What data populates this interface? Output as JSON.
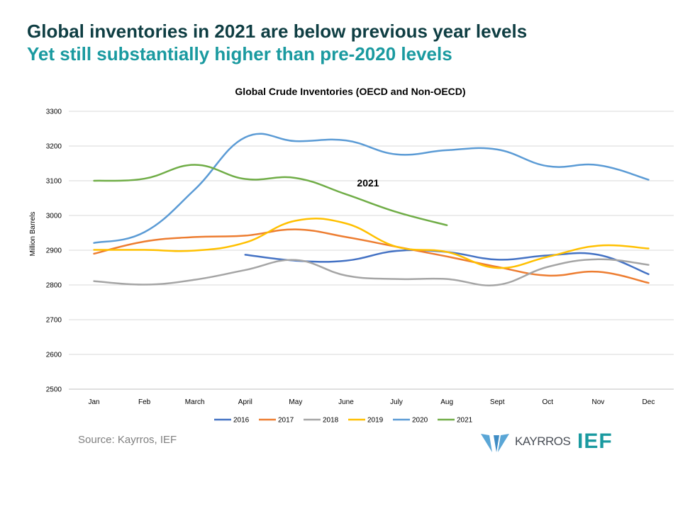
{
  "header": {
    "title": "Global inventories in 2021 are below previous year levels",
    "subtitle": "Yet still substantially higher than pre-2020 levels"
  },
  "chart_data": {
    "type": "line",
    "title": "Global Crude Inventories (OECD and Non-OECD)",
    "xlabel": "",
    "ylabel": "Million Barrels",
    "categories": [
      "Jan",
      "Feb",
      "March",
      "April",
      "May",
      "June",
      "July",
      "Aug",
      "Sept",
      "Oct",
      "Nov",
      "Dec"
    ],
    "ylim": [
      2500,
      3300
    ],
    "yticks": [
      2500,
      2600,
      2700,
      2800,
      2900,
      3000,
      3100,
      3200,
      3300
    ],
    "grid": true,
    "legend_position": "bottom",
    "annotation": "2021",
    "series": [
      {
        "name": "2016",
        "color": "#4472c4",
        "values": [
          null,
          null,
          null,
          2887,
          2870,
          2870,
          2898,
          2895,
          2873,
          2885,
          2887,
          2831
        ]
      },
      {
        "name": "2017",
        "color": "#ed7d31",
        "values": [
          2890,
          2925,
          2938,
          2942,
          2960,
          2938,
          2910,
          2882,
          2852,
          2827,
          2838,
          2806
        ]
      },
      {
        "name": "2018",
        "color": "#a5a5a5",
        "values": [
          2811,
          2801,
          2815,
          2843,
          2872,
          2827,
          2817,
          2817,
          2800,
          2852,
          2874,
          2858
        ]
      },
      {
        "name": "2019",
        "color": "#ffc000",
        "values": [
          2901,
          2901,
          2899,
          2922,
          2985,
          2977,
          2910,
          2895,
          2849,
          2881,
          2913,
          2905
        ]
      },
      {
        "name": "2020",
        "color": "#5b9bd5",
        "values": [
          2921,
          2952,
          3075,
          3225,
          3214,
          3216,
          3176,
          3188,
          3190,
          3142,
          3145,
          3103
        ]
      },
      {
        "name": "2021",
        "color": "#70ad47",
        "values": [
          3100,
          3106,
          3146,
          3105,
          3108,
          3061,
          3010,
          2972,
          null,
          null,
          null,
          null
        ]
      }
    ]
  },
  "footer": {
    "source": "Source: Kayrros, IEF",
    "logo_kayrros": "KAYRROS",
    "logo_ief": "IEF"
  }
}
